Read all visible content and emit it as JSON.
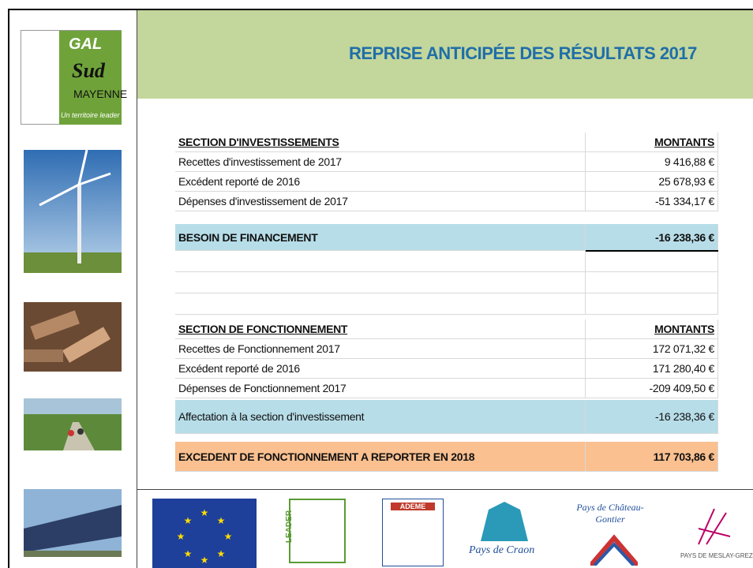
{
  "header": {
    "title": "REPRISE ANTICIPÉE DES RÉSULTATS 2017"
  },
  "sidebar": {
    "logo": {
      "line1": "GAL",
      "line2": "Sud",
      "line3": "MAYENNE",
      "tagline": "Un territoire leader"
    }
  },
  "investissement": {
    "heading": "SECTION D'INVESTISSEMENTS",
    "amount_heading": "MONTANTS",
    "rows": [
      [
        "Recettes d'investissement de 2017",
        "9 416,88 €"
      ],
      [
        "Excédent reporté de 2016",
        "25 678,93 €"
      ],
      [
        "Dépenses d'investissement de 2017",
        "-51 334,17 €"
      ]
    ],
    "total": [
      "BESOIN DE FINANCEMENT",
      "-16 238,36 €"
    ]
  },
  "fonctionnement": {
    "heading": "SECTION DE FONCTIONNEMENT",
    "amount_heading": "MONTANTS",
    "rows": [
      [
        "Recettes de Fonctionnement 2017",
        "172 071,32 €"
      ],
      [
        "Excédent reporté de 2016",
        "171 280,40 €"
      ],
      [
        "Dépenses de Fonctionnement 2017",
        "-209 409,50 €"
      ]
    ],
    "affectation": [
      "Affectation à la section d'investissement",
      "-16 238,36 €"
    ],
    "total": [
      "EXCEDENT DE FONCTIONNEMENT A REPORTER EN 2018",
      "117 703,86 €"
    ]
  },
  "footer": {
    "logos": [
      "LEADER",
      "ADEME",
      "Pays de Craon",
      "Pays de Château-Gontier",
      "PAYS DE MESLAY-GREZ"
    ]
  }
}
